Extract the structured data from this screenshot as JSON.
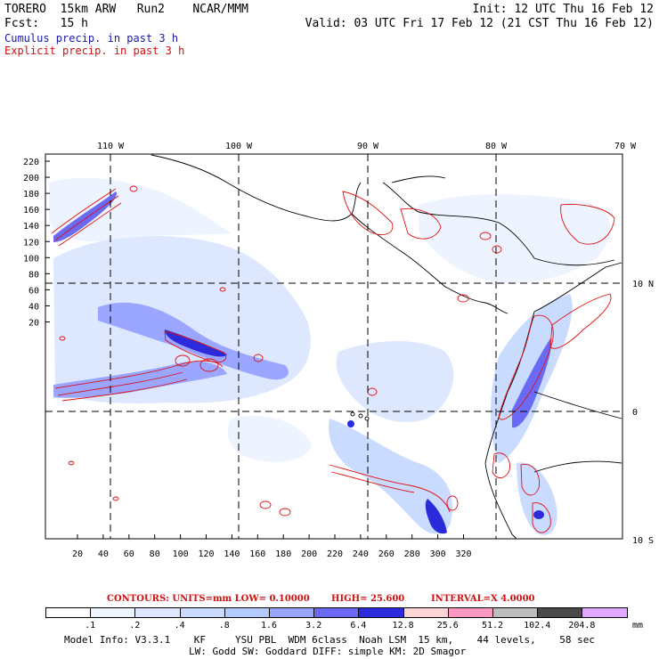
{
  "header": {
    "line1_left": "TORERO  15km ARW   Run2    NCAR/MMM",
    "line1_right": "Init: 12 UTC Thu 16 Feb 12",
    "line2_left": "Fcst:   15 h",
    "line2_right": "Valid: 03 UTC Fri 17 Feb 12 (21 CST Thu 16 Feb 12)",
    "line3": "Cumulus precip. in past 3 h",
    "line4": "Explicit precip. in past 3 h"
  },
  "map": {
    "top_lon_labels": [
      "110 W",
      "100 W",
      "90 W",
      "80 W",
      "70 W"
    ],
    "right_lat_labels": [
      "10 N",
      "0",
      "10 S"
    ],
    "left_y_ticks": [
      "220",
      "200",
      "180",
      "160",
      "140",
      "120",
      "100",
      "80",
      "60",
      "40",
      "20"
    ],
    "bottom_x_ticks": [
      "20",
      "40",
      "60",
      "80",
      "100",
      "120",
      "140",
      "160",
      "180",
      "200",
      "220",
      "240",
      "260",
      "280",
      "300",
      "320"
    ],
    "colors": {
      "cumulus": "#3030e0",
      "explicit": "#e01010",
      "coast": "#000000",
      "grid": "#000000"
    }
  },
  "contours": {
    "label": "CONTOURS:  UNITS=mm  LOW= 0.10000",
    "high": "HIGH=  25.600",
    "interval": "INTERVAL=X  4.0000"
  },
  "legend": {
    "unit": "mm",
    "ticks": [
      ".1",
      ".2",
      ".4",
      ".8",
      "1.6",
      "3.2",
      "6.4",
      "12.8",
      "25.6",
      "51.2",
      "102.4",
      "204.8"
    ],
    "colors": [
      "#ffffff",
      "#eef4ff",
      "#dde8ff",
      "#c9dcff",
      "#b4cbff",
      "#9aa6ff",
      "#6a6af5",
      "#2b2bdc",
      "#ffd4d4",
      "#ff99c4",
      "#bdbdbd",
      "#4a4a4a",
      "#e0a8ff"
    ]
  },
  "model_info": {
    "line1": "Model Info: V3.3.1    KF     YSU PBL  WDM 6class  Noah LSM  15 km,    44 levels,    58 sec",
    "line2": "LW: Godd SW: Goddard DIFF: simple KM: 2D Smagor"
  }
}
